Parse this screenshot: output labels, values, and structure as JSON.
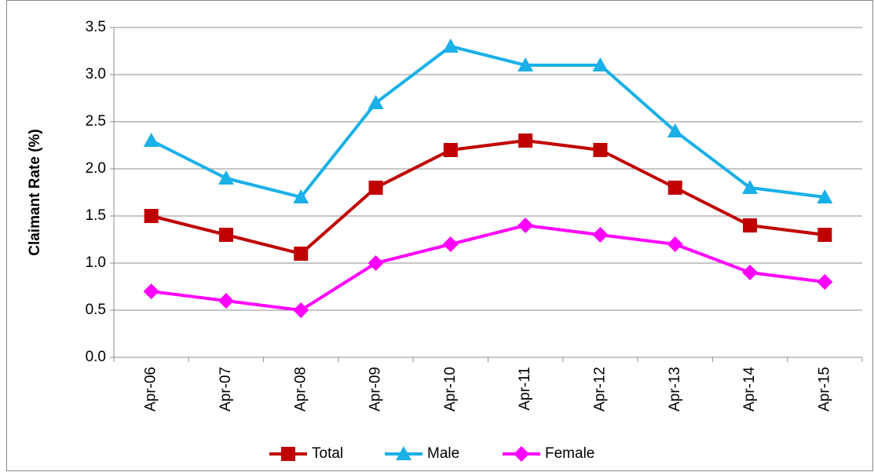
{
  "chart_data": {
    "type": "line",
    "y_label": "Claimant Rate (%)",
    "categories": [
      "Apr-06",
      "Apr-07",
      "Apr-08",
      "Apr-09",
      "Apr-10",
      "Apr-11",
      "Apr-12",
      "Apr-13",
      "Apr-14",
      "Apr-15"
    ],
    "series": [
      {
        "name": "Total",
        "color": "#c00000",
        "marker": "square",
        "values": [
          1.5,
          1.3,
          1.1,
          1.8,
          2.2,
          2.3,
          2.2,
          1.8,
          1.4,
          1.3
        ]
      },
      {
        "name": "Male",
        "color": "#1ab0e8",
        "marker": "triangle",
        "values": [
          2.3,
          1.9,
          1.7,
          2.7,
          3.3,
          3.1,
          3.1,
          2.4,
          1.8,
          1.7
        ]
      },
      {
        "name": "Female",
        "color": "#ff00ff",
        "marker": "diamond",
        "values": [
          0.7,
          0.6,
          0.5,
          1.0,
          1.2,
          1.4,
          1.3,
          1.2,
          0.9,
          0.8
        ]
      }
    ],
    "ylim": [
      0,
      3.5
    ],
    "yticks": [
      {
        "value": 0,
        "label": "0.0"
      },
      0.5,
      {
        "value": 1,
        "label": "1.0"
      },
      1.5,
      {
        "value": 2,
        "label": "2.0"
      },
      2.5,
      {
        "value": 3,
        "label": "3.0"
      },
      3.5
    ],
    "grid": true,
    "legend": "bottom"
  }
}
